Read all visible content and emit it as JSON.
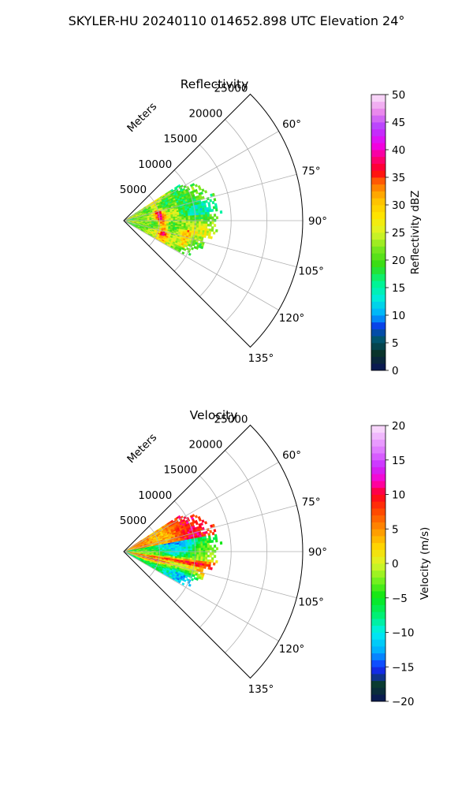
{
  "figure": {
    "suptitle": "SKYLER-HU  20240110  014652.898 UTC Elevation 24°"
  },
  "chart_data": [
    {
      "type": "heatmap",
      "projection": "polar-sector",
      "title": "Reflectivity",
      "range_label": "Meters",
      "range_ticks": [
        5000,
        10000,
        15000,
        20000,
        25000
      ],
      "range_tick_labels": [
        "5000",
        "10000",
        "15000",
        "20000",
        "25000"
      ],
      "range_lim": [
        0,
        25000
      ],
      "azimuth_lim": [
        45,
        135
      ],
      "azimuth_ticks": [
        60,
        75,
        90,
        105,
        120,
        135
      ],
      "azimuth_tick_labels": [
        "60°",
        "75°",
        "90°",
        "105°",
        "120°",
        "135°"
      ],
      "grid": true,
      "colorbar": {
        "label": "Reflectivity dBZ",
        "range": [
          0,
          50
        ],
        "ticks": [
          0,
          5,
          10,
          15,
          20,
          25,
          30,
          35,
          40,
          45,
          50
        ],
        "tick_labels": [
          "0",
          "5",
          "10",
          "15",
          "20",
          "25",
          "30",
          "35",
          "40",
          "45",
          "50"
        ]
      },
      "data_extent": {
        "azimuth_range": [
          57,
          119
        ],
        "max_range_m": 14000,
        "typical_values_dbz": [
          15,
          30
        ],
        "max_values_dbz": 42
      }
    },
    {
      "type": "heatmap",
      "projection": "polar-sector",
      "title": "Velocity",
      "range_label": "Meters",
      "range_ticks": [
        5000,
        10000,
        15000,
        20000,
        25000
      ],
      "range_tick_labels": [
        "5000",
        "10000",
        "15000",
        "20000",
        "25000"
      ],
      "range_lim": [
        0,
        25000
      ],
      "azimuth_lim": [
        45,
        135
      ],
      "azimuth_ticks": [
        60,
        75,
        90,
        105,
        120,
        135
      ],
      "azimuth_tick_labels": [
        "60°",
        "75°",
        "90°",
        "105°",
        "120°",
        "135°"
      ],
      "grid": true,
      "colorbar": {
        "label": "Velocity (m/s)",
        "range": [
          -20,
          20
        ],
        "ticks": [
          -20,
          -15,
          -10,
          -5,
          0,
          5,
          10,
          15,
          20
        ],
        "tick_labels": [
          "−20",
          "−15",
          "−10",
          "−5",
          "0",
          "5",
          "10",
          "15",
          "20"
        ]
      },
      "data_extent": {
        "azimuth_range": [
          57,
          119
        ],
        "max_range_m": 14000,
        "values_range_ms": [
          -15,
          15
        ]
      }
    }
  ]
}
